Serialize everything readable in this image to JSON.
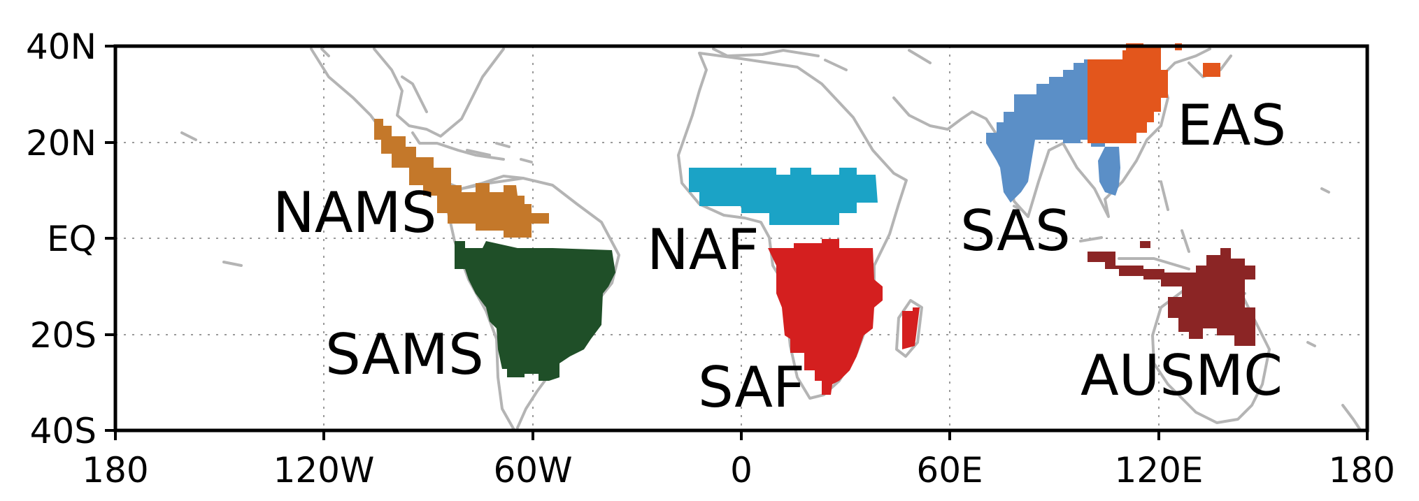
{
  "map": {
    "lon_ticks": [
      "180",
      "120W",
      "60W",
      "0",
      "60E",
      "120E",
      "180"
    ],
    "lat_ticks": [
      "40N",
      "20N",
      "EQ",
      "20S",
      "40S"
    ],
    "region_labels": {
      "nams": "NAMS",
      "sams": "SAMS",
      "naf": "NAF",
      "saf": "SAF",
      "sas": "SAS",
      "eas": "EAS",
      "ausmc": "AUSMC"
    },
    "colors": {
      "nams": "#c4782a",
      "sams": "#1f4f28",
      "naf": "#1ba3c6",
      "saf": "#d41f1f",
      "sas": "#5b8fc7",
      "eas": "#e3561c",
      "ausmc": "#8b2525",
      "coast": "#b4b4b4",
      "grid": "#9a9a9a"
    }
  }
}
